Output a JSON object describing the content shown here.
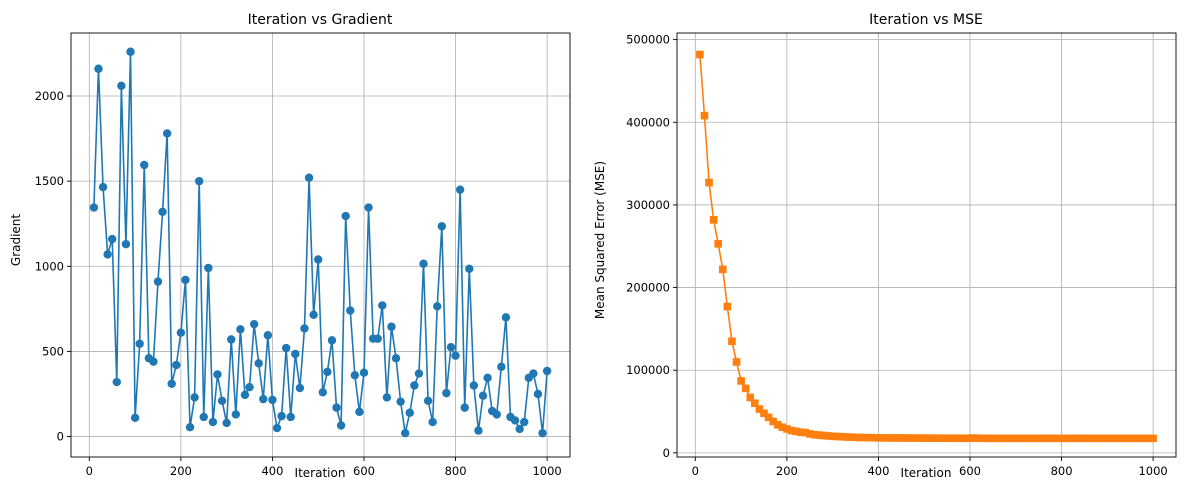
{
  "chart_data": [
    {
      "type": "line",
      "title": "Iteration vs Gradient",
      "xlabel": "Iteration",
      "ylabel": "Gradient",
      "xlim": [
        -40,
        1050
      ],
      "ylim": [
        -120,
        2370
      ],
      "xticks": [
        0,
        200,
        400,
        600,
        800,
        1000
      ],
      "yticks": [
        0,
        500,
        1000,
        1500,
        2000
      ],
      "grid": true,
      "color": "#1f77b4",
      "marker": "circle",
      "x": [
        10,
        20,
        30,
        40,
        50,
        60,
        70,
        80,
        90,
        100,
        110,
        120,
        130,
        140,
        150,
        160,
        170,
        180,
        190,
        200,
        210,
        220,
        230,
        240,
        250,
        260,
        270,
        280,
        290,
        300,
        310,
        320,
        330,
        340,
        350,
        360,
        370,
        380,
        390,
        400,
        410,
        420,
        430,
        440,
        450,
        460,
        470,
        480,
        490,
        500,
        510,
        520,
        530,
        540,
        550,
        560,
        570,
        580,
        590,
        600,
        610,
        620,
        630,
        640,
        650,
        660,
        670,
        680,
        690,
        700,
        710,
        720,
        730,
        740,
        750,
        760,
        770,
        780,
        790,
        800,
        810,
        820,
        830,
        840,
        850,
        860,
        870,
        880,
        890,
        900,
        910,
        920,
        930,
        940,
        950,
        960,
        970,
        980,
        990,
        1000
      ],
      "y": [
        1345,
        2160,
        1465,
        1070,
        1160,
        320,
        2060,
        1130,
        2260,
        110,
        545,
        1595,
        460,
        440,
        910,
        1320,
        1780,
        310,
        420,
        610,
        920,
        55,
        230,
        1500,
        115,
        990,
        85,
        365,
        210,
        80,
        570,
        130,
        630,
        245,
        290,
        660,
        430,
        220,
        595,
        215,
        50,
        120,
        520,
        115,
        485,
        285,
        635,
        1520,
        715,
        1040,
        260,
        380,
        565,
        170,
        65,
        1295,
        740,
        360,
        145,
        375,
        1345,
        575,
        575,
        770,
        230,
        645,
        460,
        205,
        20,
        140,
        300,
        370,
        1015,
        210,
        85,
        765,
        1235,
        255,
        525,
        475,
        1450,
        170,
        985,
        300,
        35,
        240,
        345,
        150,
        130,
        410,
        700,
        115,
        95,
        45,
        85,
        345,
        370,
        250,
        20,
        385
      ]
    },
    {
      "type": "line",
      "title": "Iteration vs MSE",
      "xlabel": "Iteration",
      "ylabel": "Mean Squared Error (MSE)",
      "xlim": [
        -40,
        1050
      ],
      "ylim": [
        -5000,
        508000
      ],
      "xticks": [
        0,
        200,
        400,
        600,
        800,
        1000
      ],
      "yticks": [
        0,
        100000,
        200000,
        300000,
        400000,
        500000
      ],
      "grid": true,
      "color": "#ff7f0e",
      "marker": "square",
      "x": [
        10,
        20,
        30,
        40,
        50,
        60,
        70,
        80,
        90,
        100,
        110,
        120,
        130,
        140,
        150,
        160,
        170,
        180,
        190,
        200,
        210,
        220,
        230,
        240,
        250,
        260,
        270,
        280,
        290,
        300,
        310,
        320,
        330,
        340,
        350,
        360,
        370,
        380,
        390,
        400,
        410,
        420,
        430,
        440,
        450,
        460,
        470,
        480,
        490,
        500,
        510,
        520,
        530,
        540,
        550,
        560,
        570,
        580,
        590,
        600,
        610,
        620,
        630,
        640,
        650,
        660,
        670,
        680,
        690,
        700,
        710,
        720,
        730,
        740,
        750,
        760,
        770,
        780,
        790,
        800,
        810,
        820,
        830,
        840,
        850,
        860,
        870,
        880,
        890,
        900,
        910,
        920,
        930,
        940,
        950,
        960,
        970,
        980,
        990,
        1000
      ],
      "y": [
        482000,
        408000,
        327000,
        282000,
        253000,
        222000,
        177000,
        135000,
        110000,
        87000,
        78000,
        67000,
        60000,
        53000,
        48000,
        43000,
        38000,
        34000,
        31000,
        29000,
        27000,
        26000,
        25000,
        24500,
        23000,
        22000,
        21500,
        21000,
        20500,
        20000,
        19800,
        19500,
        19200,
        19000,
        18800,
        18600,
        18500,
        18400,
        18300,
        18200,
        18150,
        18100,
        18050,
        18000,
        18200,
        18000,
        17900,
        17950,
        17900,
        17850,
        17800,
        17800,
        17800,
        17750,
        17700,
        17700,
        17700,
        17650,
        17650,
        17800,
        17900,
        17700,
        17650,
        17600,
        17600,
        17600,
        17600,
        17600,
        17600,
        17600,
        17600,
        17600,
        17600,
        17600,
        17600,
        17600,
        17600,
        17600,
        17600,
        17600,
        17600,
        17600,
        17600,
        17600,
        17600,
        17600,
        17600,
        17600,
        17600,
        17600,
        17600,
        17600,
        17600,
        17600,
        17600,
        17600,
        17600,
        17600,
        17600,
        17600
      ]
    }
  ]
}
